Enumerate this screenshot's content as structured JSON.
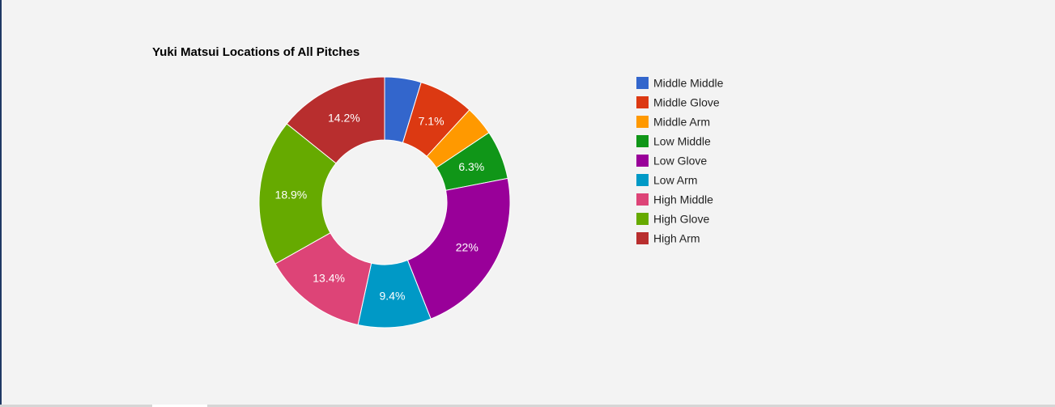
{
  "chart_data": {
    "type": "pie",
    "title": "Yuki Matsui Locations of All Pitches",
    "donut": true,
    "legend_position": "right",
    "slices": [
      {
        "name": "Middle Middle",
        "value": 4.7,
        "color": "#3366cc",
        "label": ""
      },
      {
        "name": "Middle Glove",
        "value": 7.1,
        "color": "#dc3912",
        "label": "7.1%"
      },
      {
        "name": "Middle Arm",
        "value": 3.8,
        "color": "#ff9900",
        "label": ""
      },
      {
        "name": "Low Middle",
        "value": 6.3,
        "color": "#109618",
        "label": "6.3%"
      },
      {
        "name": "Low Glove",
        "value": 22.0,
        "color": "#990099",
        "label": "22%"
      },
      {
        "name": "Low Arm",
        "value": 9.4,
        "color": "#0099c6",
        "label": "9.4%"
      },
      {
        "name": "High Middle",
        "value": 13.4,
        "color": "#dd4477",
        "label": "13.4%"
      },
      {
        "name": "High Glove",
        "value": 18.9,
        "color": "#66aa00",
        "label": "18.9%"
      },
      {
        "name": "High Arm",
        "value": 14.2,
        "color": "#b82e2e",
        "label": "14.2%"
      }
    ]
  }
}
